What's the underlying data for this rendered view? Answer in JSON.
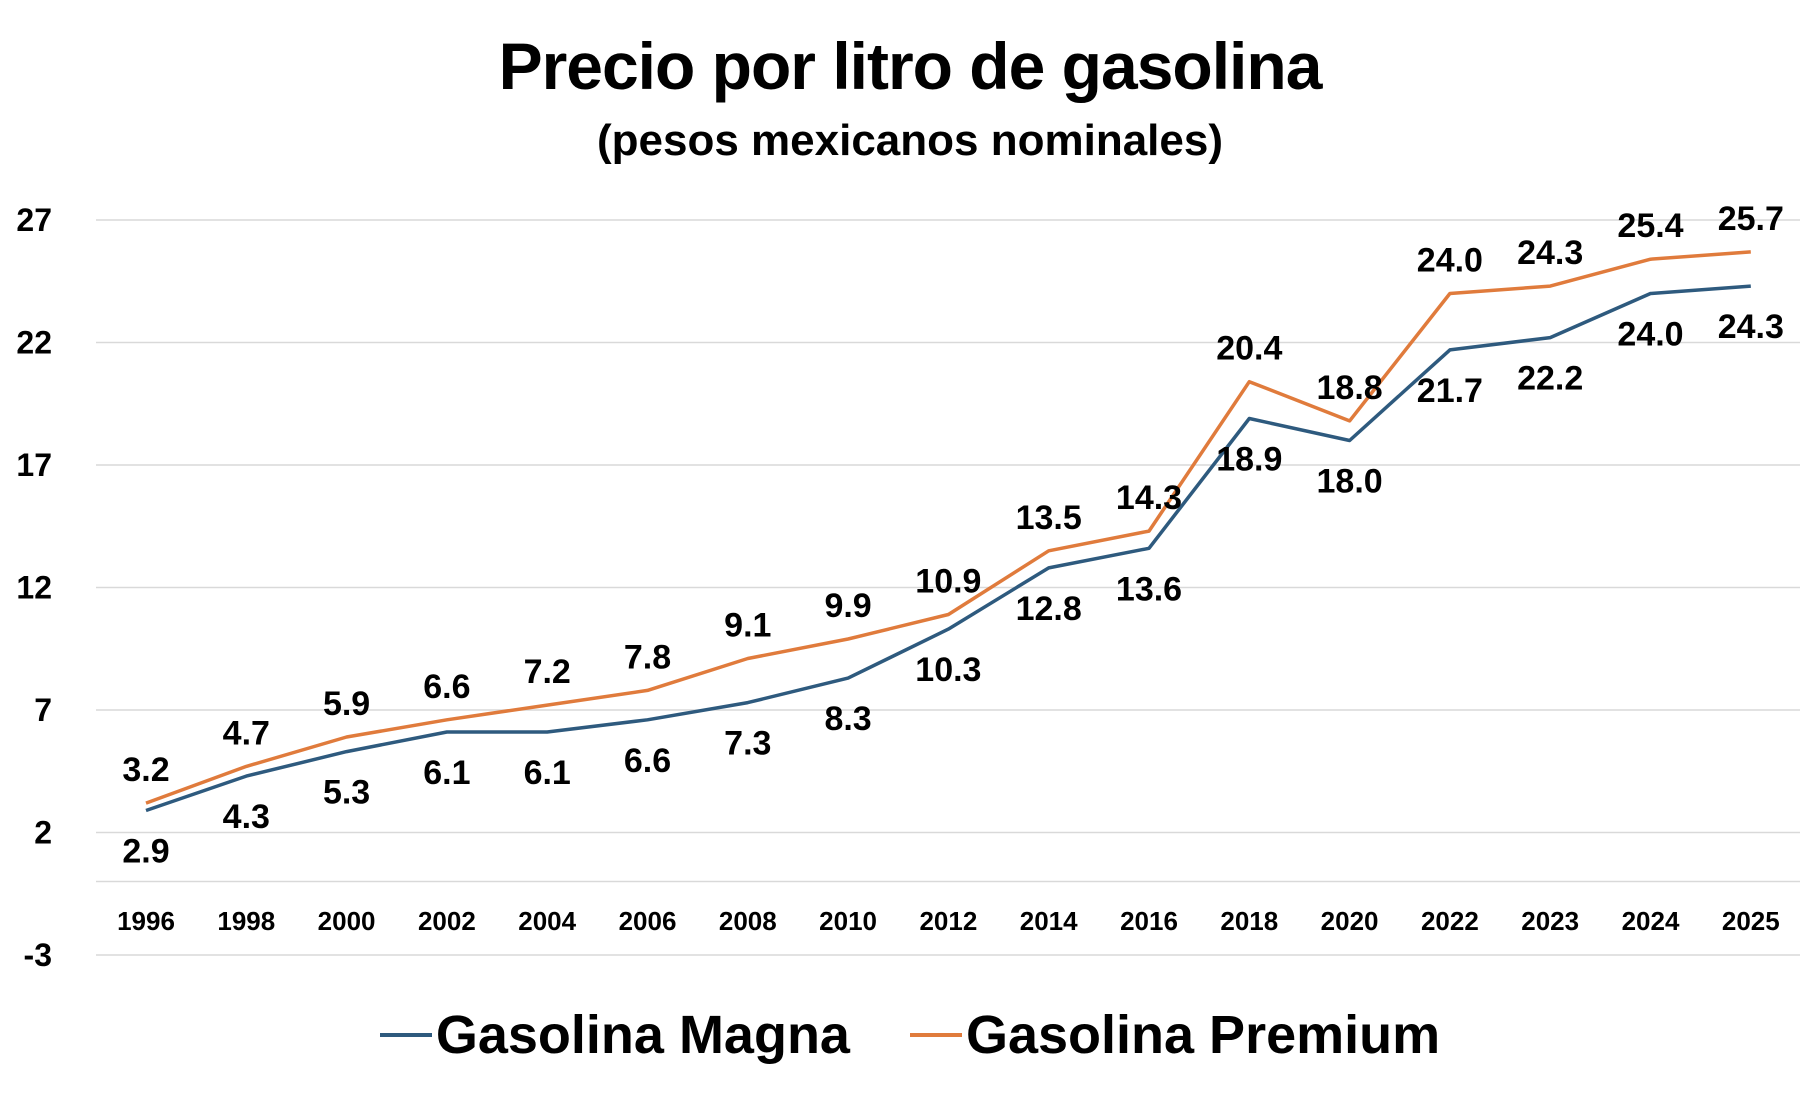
{
  "chart_data": {
    "type": "line",
    "title": "Precio por litro de gasolina",
    "subtitle": "(pesos mexicanos nominales)",
    "xlabel": "",
    "ylabel": "",
    "categories": [
      "1996",
      "1998",
      "2000",
      "2002",
      "2004",
      "2006",
      "2008",
      "2010",
      "2012",
      "2014",
      "2016",
      "2018",
      "2020",
      "2022",
      "2023",
      "2024",
      "2025"
    ],
    "ylim": [
      -3,
      27
    ],
    "yticks": [
      "27",
      "22",
      "17",
      "12",
      "7",
      "2",
      "-3"
    ],
    "grid": true,
    "legend_position": "bottom",
    "series": [
      {
        "name": "Gasolina Magna",
        "color": "#2e5a7e",
        "values": [
          2.9,
          4.3,
          5.3,
          6.1,
          6.1,
          6.6,
          7.3,
          8.3,
          10.3,
          12.8,
          13.6,
          18.9,
          18.0,
          21.7,
          22.2,
          24.0,
          24.3
        ],
        "labels": [
          "2.9",
          "4.3",
          "5.3",
          "6.1",
          "6.1",
          "6.6",
          "7.3",
          "8.3",
          "10.3",
          "12.8",
          "13.6",
          "18.9",
          "18.0",
          "21.7",
          "22.2",
          "24.0",
          "24.3"
        ]
      },
      {
        "name": "Gasolina Premium",
        "color": "#e07b3c",
        "values": [
          3.2,
          4.7,
          5.9,
          6.6,
          7.2,
          7.8,
          9.1,
          9.9,
          10.9,
          13.5,
          14.3,
          20.4,
          18.8,
          24.0,
          24.3,
          25.4,
          25.7
        ],
        "labels": [
          "3.2",
          "4.7",
          "5.9",
          "6.6",
          "7.2",
          "7.8",
          "9.1",
          "9.9",
          "10.9",
          "13.5",
          "14.3",
          "20.4",
          "18.8",
          "24.0",
          "24.3",
          "25.4",
          "25.7"
        ]
      }
    ]
  }
}
